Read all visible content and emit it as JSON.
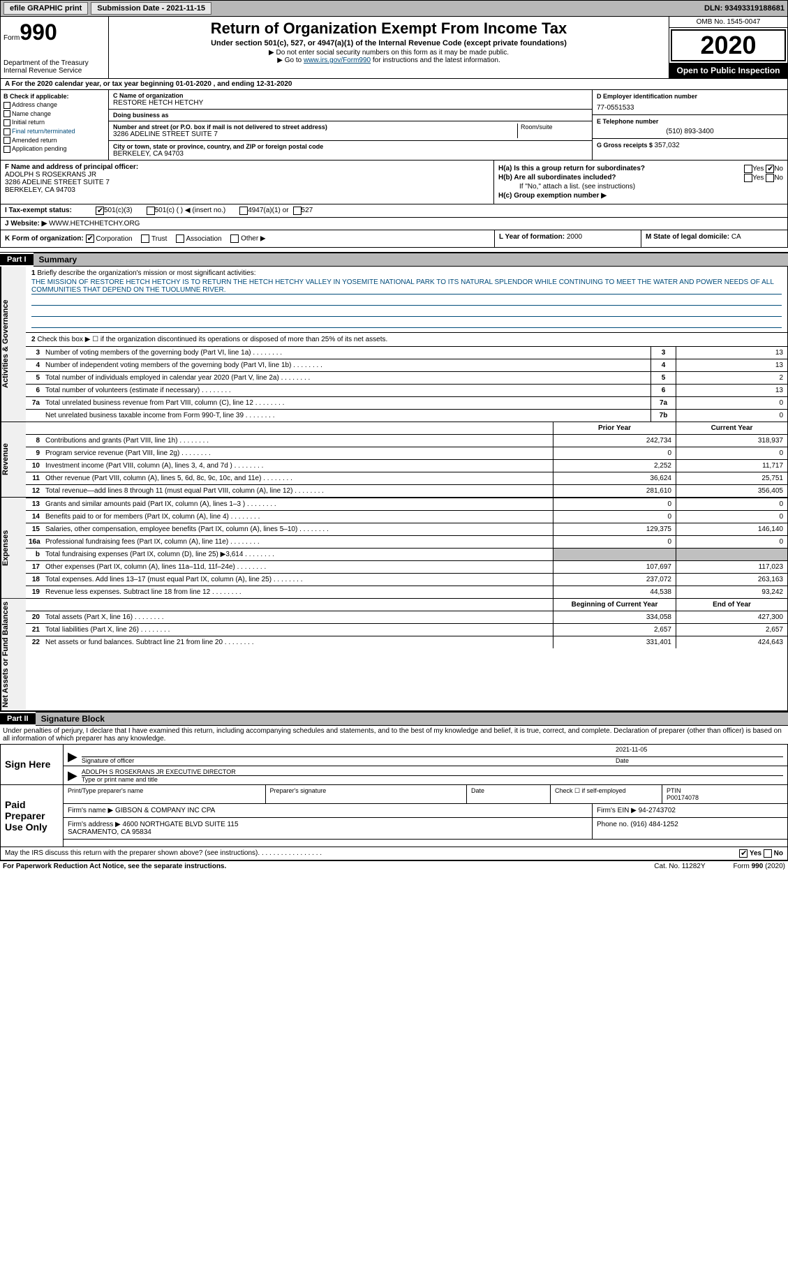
{
  "topbar": {
    "efile_btn": "efile GRAPHIC print",
    "sub_label": "Submission Date - ",
    "sub_date": "2021-11-15",
    "dln_label": "DLN: ",
    "dln": "93493319188681"
  },
  "header": {
    "form_label": "Form",
    "form_num": "990",
    "dept": "Department of the Treasury\nInternal Revenue Service",
    "title": "Return of Organization Exempt From Income Tax",
    "subtitle": "Under section 501(c), 527, or 4947(a)(1) of the Internal Revenue Code (except private foundations)",
    "instr1": "▶ Do not enter social security numbers on this form as it may be made public.",
    "instr2_pre": "▶ Go to ",
    "instr2_link": "www.irs.gov/Form990",
    "instr2_post": " for instructions and the latest information.",
    "omb": "OMB No. 1545-0047",
    "year": "2020",
    "open_public": "Open to Public Inspection"
  },
  "rowA": "A For the 2020 calendar year, or tax year beginning 01-01-2020   , and ending 12-31-2020",
  "boxB": {
    "label": "B Check if applicable:",
    "items": [
      "Address change",
      "Name change",
      "Initial return",
      "Final return/terminated",
      "Amended return",
      "Application pending"
    ]
  },
  "boxC": {
    "name_lbl": "C Name of organization",
    "name": "RESTORE HETCH HETCHY",
    "dba_lbl": "Doing business as",
    "dba": "",
    "street_lbl": "Number and street (or P.O. box if mail is not delivered to street address)",
    "street": "3286 ADELINE STREET SUITE 7",
    "suite_lbl": "Room/suite",
    "city_lbl": "City or town, state or province, country, and ZIP or foreign postal code",
    "city": "BERKELEY, CA  94703"
  },
  "boxD": {
    "ein_lbl": "D Employer identification number",
    "ein": "77-0551533",
    "tel_lbl": "E Telephone number",
    "tel": "(510) 893-3400",
    "gross_lbl": "G Gross receipts $ ",
    "gross": "357,032"
  },
  "boxF": {
    "lbl": "F Name and address of principal officer:",
    "name": "ADOLPH S ROSEKRANS JR",
    "addr1": "3286 ADELINE STREET SUITE 7",
    "addr2": "BERKELEY, CA  94703"
  },
  "boxH": {
    "ha": "H(a)  Is this a group return for subordinates?",
    "hb": "H(b)  Are all subordinates included?",
    "hb_note": "If \"No,\" attach a list. (see instructions)",
    "hc": "H(c)  Group exemption number ▶",
    "yes": "Yes",
    "no": "No"
  },
  "rowI": {
    "lbl": "I    Tax-exempt status:",
    "opts": [
      "501(c)(3)",
      "501(c) (  ) ◀ (insert no.)",
      "4947(a)(1) or",
      "527"
    ]
  },
  "rowJ": {
    "lbl": "J   Website: ▶ ",
    "val": "WWW.HETCHHETCHY.ORG"
  },
  "rowK": {
    "lbl": "K Form of organization:",
    "opts": [
      "Corporation",
      "Trust",
      "Association",
      "Other ▶"
    ]
  },
  "rowLM": {
    "l_lbl": "L Year of formation: ",
    "l_val": "2000",
    "m_lbl": "M State of legal domicile: ",
    "m_val": "CA"
  },
  "part1": {
    "hdr": "Part I",
    "title": "Summary",
    "side_gov": "Activities & Governance",
    "side_rev": "Revenue",
    "side_exp": "Expenses",
    "side_net": "Net Assets or Fund Balances",
    "line1_lbl": "Briefly describe the organization's mission or most significant activities:",
    "line1_txt": "THE MISSION OF RESTORE HETCH HETCHY IS TO RETURN THE HETCH HETCHY VALLEY IN YOSEMITE NATIONAL PARK TO ITS NATURAL SPLENDOR WHILE CONTINUING TO MEET THE WATER AND POWER NEEDS OF ALL COMMUNITIES THAT DEPEND ON THE TUOLUMNE RIVER.",
    "line2": "Check this box ▶ ☐  if the organization discontinued its operations or disposed of more than 25% of its net assets.",
    "govrows": [
      {
        "n": "3",
        "d": "Number of voting members of the governing body (Part VI, line 1a)",
        "b": "3",
        "v": "13"
      },
      {
        "n": "4",
        "d": "Number of independent voting members of the governing body (Part VI, line 1b)",
        "b": "4",
        "v": "13"
      },
      {
        "n": "5",
        "d": "Total number of individuals employed in calendar year 2020 (Part V, line 2a)",
        "b": "5",
        "v": "2"
      },
      {
        "n": "6",
        "d": "Total number of volunteers (estimate if necessary)",
        "b": "6",
        "v": "13"
      },
      {
        "n": "7a",
        "d": "Total unrelated business revenue from Part VIII, column (C), line 12",
        "b": "7a",
        "v": "0"
      },
      {
        "n": "",
        "d": "Net unrelated business taxable income from Form 990-T, line 39",
        "b": "7b",
        "v": "0"
      }
    ],
    "prior_hdr": "Prior Year",
    "curr_hdr": "Current Year",
    "revrows": [
      {
        "n": "8",
        "d": "Contributions and grants (Part VIII, line 1h)",
        "p": "242,734",
        "c": "318,937"
      },
      {
        "n": "9",
        "d": "Program service revenue (Part VIII, line 2g)",
        "p": "0",
        "c": "0"
      },
      {
        "n": "10",
        "d": "Investment income (Part VIII, column (A), lines 3, 4, and 7d )",
        "p": "2,252",
        "c": "11,717"
      },
      {
        "n": "11",
        "d": "Other revenue (Part VIII, column (A), lines 5, 6d, 8c, 9c, 10c, and 11e)",
        "p": "36,624",
        "c": "25,751"
      },
      {
        "n": "12",
        "d": "Total revenue—add lines 8 through 11 (must equal Part VIII, column (A), line 12)",
        "p": "281,610",
        "c": "356,405"
      }
    ],
    "exprows": [
      {
        "n": "13",
        "d": "Grants and similar amounts paid (Part IX, column (A), lines 1–3 )",
        "p": "0",
        "c": "0"
      },
      {
        "n": "14",
        "d": "Benefits paid to or for members (Part IX, column (A), line 4)",
        "p": "0",
        "c": "0"
      },
      {
        "n": "15",
        "d": "Salaries, other compensation, employee benefits (Part IX, column (A), lines 5–10)",
        "p": "129,375",
        "c": "146,140"
      },
      {
        "n": "16a",
        "d": "Professional fundraising fees (Part IX, column (A), line 11e)",
        "p": "0",
        "c": "0"
      },
      {
        "n": "b",
        "d": "Total fundraising expenses (Part IX, column (D), line 25) ▶3,614",
        "p": "",
        "c": "",
        "shaded": true
      },
      {
        "n": "17",
        "d": "Other expenses (Part IX, column (A), lines 11a–11d, 11f–24e)",
        "p": "107,697",
        "c": "117,023"
      },
      {
        "n": "18",
        "d": "Total expenses. Add lines 13–17 (must equal Part IX, column (A), line 25)",
        "p": "237,072",
        "c": "263,163"
      },
      {
        "n": "19",
        "d": "Revenue less expenses. Subtract line 18 from line 12",
        "p": "44,538",
        "c": "93,242"
      }
    ],
    "net_prior_hdr": "Beginning of Current Year",
    "net_curr_hdr": "End of Year",
    "netrows": [
      {
        "n": "20",
        "d": "Total assets (Part X, line 16)",
        "p": "334,058",
        "c": "427,300"
      },
      {
        "n": "21",
        "d": "Total liabilities (Part X, line 26)",
        "p": "2,657",
        "c": "2,657"
      },
      {
        "n": "22",
        "d": "Net assets or fund balances. Subtract line 21 from line 20",
        "p": "331,401",
        "c": "424,643"
      }
    ]
  },
  "part2": {
    "hdr": "Part II",
    "title": "Signature Block",
    "penalties": "Under penalties of perjury, I declare that I have examined this return, including accompanying schedules and statements, and to the best of my knowledge and belief, it is true, correct, and complete. Declaration of preparer (other than officer) is based on all information of which preparer has any knowledge.",
    "sign_here": "Sign Here",
    "sig_officer": "Signature of officer",
    "sig_date": "2021-11-05",
    "date_lbl": "Date",
    "officer_name": "ADOLPH S ROSEKRANS JR  EXECUTIVE DIRECTOR",
    "type_name_lbl": "Type or print name and title",
    "paid_prep": "Paid Preparer Use Only",
    "prep_hdr": [
      "Print/Type preparer's name",
      "Preparer's signature",
      "Date",
      "Check ☐ if self-employed",
      "PTIN"
    ],
    "ptin": "P00174078",
    "firm_name_lbl": "Firm's name    ▶ ",
    "firm_name": "GIBSON & COMPANY INC CPA",
    "firm_ein_lbl": "Firm's EIN ▶ ",
    "firm_ein": "94-2743702",
    "firm_addr_lbl": "Firm's address ▶ ",
    "firm_addr": "4600 NORTHGATE BLVD SUITE 115\nSACRAMENTO, CA  95834",
    "phone_lbl": "Phone no. ",
    "phone": "(916) 484-1252",
    "discuss": "May the IRS discuss this return with the preparer shown above? (see instructions)",
    "discuss_yes": "Yes",
    "discuss_no": "No"
  },
  "footer": {
    "left": "For Paperwork Reduction Act Notice, see the separate instructions.",
    "mid": "Cat. No. 11282Y",
    "right": "Form 990 (2020)"
  }
}
